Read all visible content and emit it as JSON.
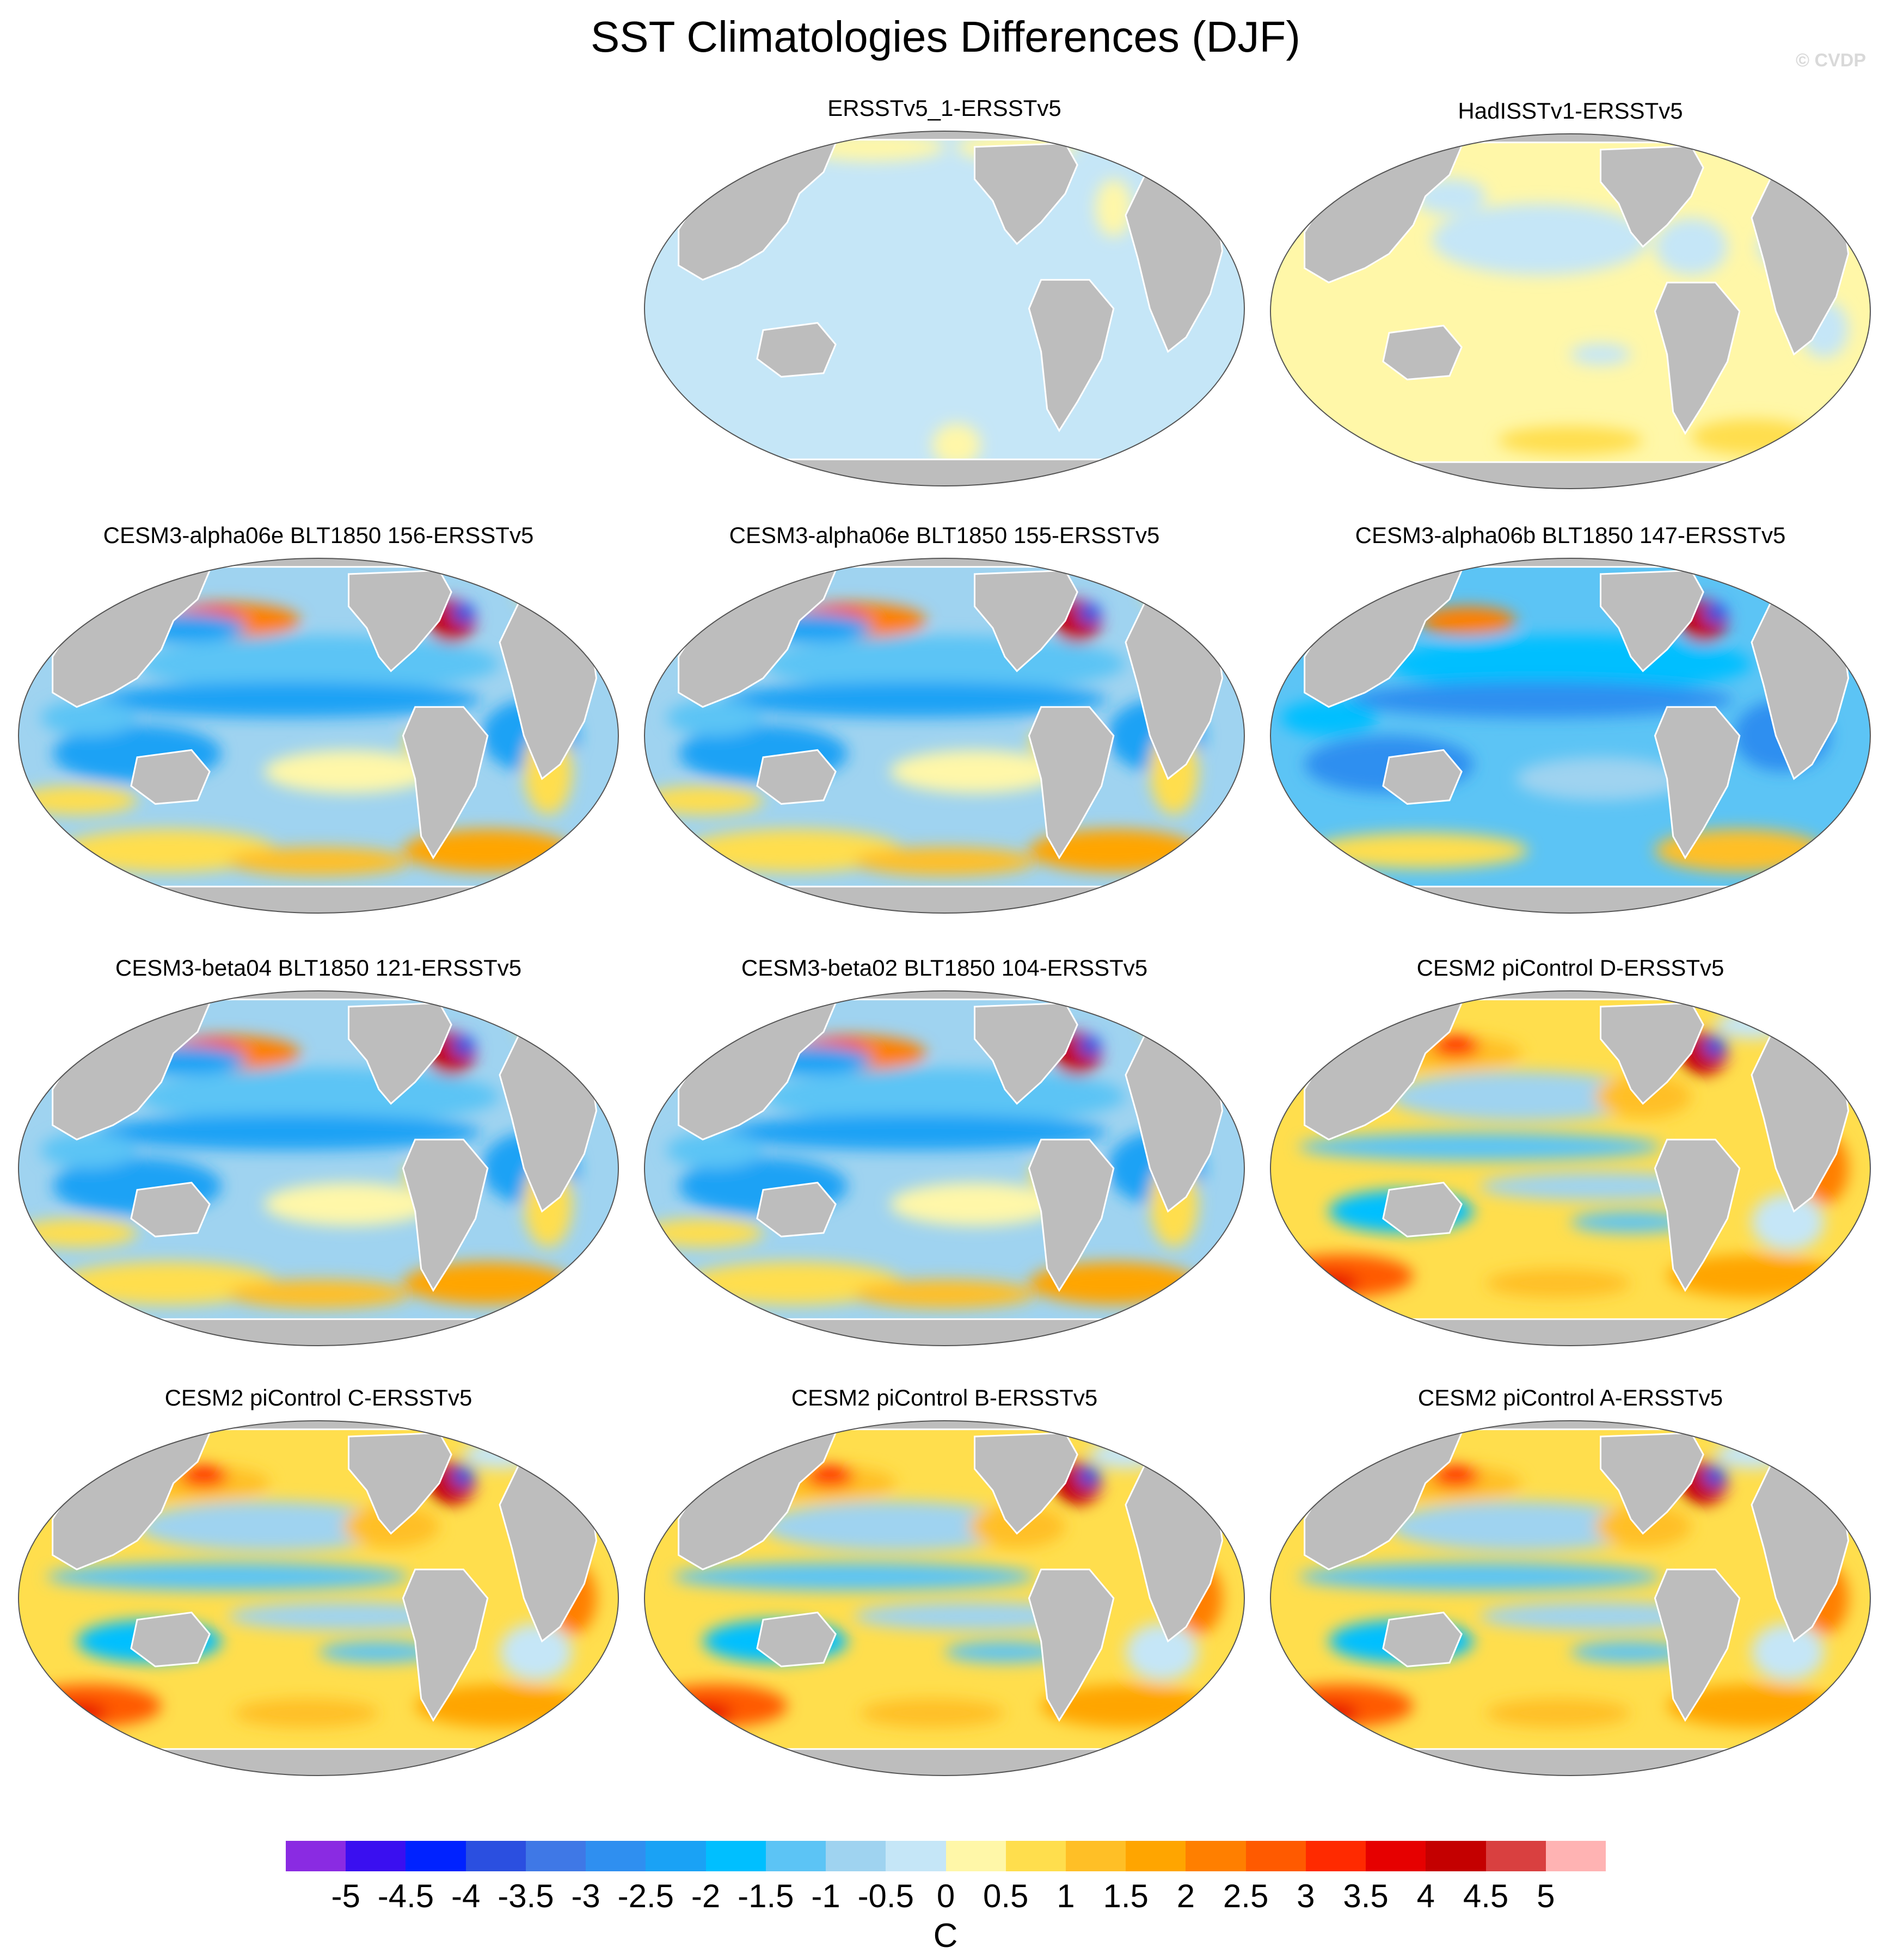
{
  "title": "SST Climatologies Differences (DJF)",
  "watermark": "© CVDP",
  "colors": {
    "land": "#bdbdbd",
    "coast": "#ffffff",
    "ocean_outline": "#555555"
  },
  "panels": [
    {
      "title": "ERSSTv5_1-ERSSTv5",
      "style": "uniform_negative"
    },
    {
      "title": "HadISSTv1-ERSSTv5",
      "style": "mostly_positive"
    },
    {
      "title": "CESM3-alpha06e BLT1850 156-ERSSTv5",
      "style": "cesm3"
    },
    {
      "title": "CESM3-alpha06e BLT1850 155-ERSSTv5",
      "style": "cesm3"
    },
    {
      "title": "CESM3-alpha06b BLT1850 147-ERSSTv5",
      "style": "cesm3_cold"
    },
    {
      "title": "CESM3-beta04 BLT1850 121-ERSSTv5",
      "style": "cesm3"
    },
    {
      "title": "CESM3-beta02 BLT1850 104-ERSSTv5",
      "style": "cesm3"
    },
    {
      "title": "CESM2 piControl D-ERSSTv5",
      "style": "cesm2"
    },
    {
      "title": "CESM2 piControl C-ERSSTv5",
      "style": "cesm2"
    },
    {
      "title": "CESM2 piControl B-ERSSTv5",
      "style": "cesm2"
    },
    {
      "title": "CESM2 piControl A-ERSSTv5",
      "style": "cesm2"
    }
  ],
  "colorbar": {
    "colors": [
      "#8a2be2",
      "#3a0ff0",
      "#0022ff",
      "#2b4fe0",
      "#3f78e6",
      "#2f8ff0",
      "#1aa2f5",
      "#00bfff",
      "#5cc4f5",
      "#9fd3f0",
      "#c5e6f7",
      "#fff7a8",
      "#ffde4d",
      "#ffbf26",
      "#ffa500",
      "#ff7f00",
      "#ff5a00",
      "#ff2a00",
      "#e60000",
      "#c40000",
      "#d94040",
      "#ffb3b3"
    ],
    "labels": [
      "-5",
      "-4.5",
      "-4",
      "-3.5",
      "-3",
      "-2.5",
      "-2",
      "-1.5",
      "-1",
      "-0.5",
      "0",
      "0.5",
      "1",
      "1.5",
      "2",
      "2.5",
      "3",
      "3.5",
      "4",
      "4.5",
      "5"
    ],
    "units": "C"
  }
}
